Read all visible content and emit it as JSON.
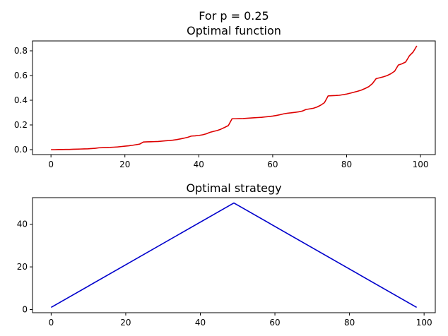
{
  "figure": {
    "suptitle": "For p = 0.25"
  },
  "chart_data": [
    {
      "type": "line",
      "title": "Optimal function",
      "xlabel": "",
      "ylabel": "",
      "xlim": [
        -5,
        104
      ],
      "ylim": [
        -0.04,
        0.88
      ],
      "xticks": [
        0,
        20,
        40,
        60,
        80,
        100
      ],
      "xtick_labels": [
        "0",
        "20",
        "40",
        "60",
        "80",
        "100"
      ],
      "yticks": [
        0.0,
        0.2,
        0.4,
        0.6,
        0.8
      ],
      "ytick_labels": [
        "0.0",
        "0.2",
        "0.4",
        "0.6",
        "0.8"
      ],
      "grid": false,
      "series": [
        {
          "color": "#dd0000",
          "x": [
            0,
            1,
            2,
            3,
            4,
            5,
            6,
            7,
            8,
            9,
            10,
            11,
            12,
            13,
            14,
            15,
            16,
            17,
            18,
            19,
            20,
            21,
            22,
            23,
            24,
            25,
            26,
            27,
            28,
            29,
            30,
            31,
            32,
            33,
            34,
            35,
            36,
            37,
            38,
            39,
            40,
            41,
            42,
            43,
            44,
            45,
            46,
            47,
            48,
            49,
            50,
            51,
            52,
            53,
            54,
            55,
            56,
            57,
            58,
            59,
            60,
            61,
            62,
            63,
            64,
            65,
            66,
            67,
            68,
            69,
            70,
            71,
            72,
            73,
            74,
            75,
            76,
            77,
            78,
            79,
            80,
            81,
            82,
            83,
            84,
            85,
            86,
            87,
            88,
            89,
            90,
            91,
            92,
            93,
            94,
            95,
            96,
            97,
            98,
            99
          ],
          "y": [
            0.0,
            0.0,
            0.001,
            0.001,
            0.002,
            0.002,
            0.003,
            0.004,
            0.005,
            0.006,
            0.007,
            0.009,
            0.011,
            0.015,
            0.016,
            0.017,
            0.018,
            0.02,
            0.022,
            0.025,
            0.028,
            0.031,
            0.035,
            0.04,
            0.045,
            0.062,
            0.063,
            0.064,
            0.065,
            0.066,
            0.069,
            0.072,
            0.074,
            0.077,
            0.081,
            0.087,
            0.093,
            0.1,
            0.11,
            0.112,
            0.115,
            0.12,
            0.128,
            0.14,
            0.148,
            0.155,
            0.166,
            0.18,
            0.195,
            0.25,
            0.25,
            0.251,
            0.252,
            0.254,
            0.256,
            0.258,
            0.26,
            0.262,
            0.265,
            0.268,
            0.272,
            0.277,
            0.283,
            0.29,
            0.295,
            0.298,
            0.302,
            0.306,
            0.312,
            0.325,
            0.33,
            0.335,
            0.345,
            0.36,
            0.38,
            0.435,
            0.437,
            0.438,
            0.44,
            0.445,
            0.45,
            0.457,
            0.465,
            0.473,
            0.482,
            0.495,
            0.51,
            0.535,
            0.575,
            0.582,
            0.59,
            0.6,
            0.615,
            0.635,
            0.685,
            0.695,
            0.71,
            0.76,
            0.79,
            0.84
          ]
        }
      ]
    },
    {
      "type": "line",
      "title": "Optimal strategy",
      "xlabel": "",
      "ylabel": "",
      "xlim": [
        -5,
        103
      ],
      "ylim": [
        -1.5,
        52.5
      ],
      "xticks": [
        0,
        20,
        40,
        60,
        80,
        100
      ],
      "xtick_labels": [
        "0",
        "20",
        "40",
        "60",
        "80",
        "100"
      ],
      "yticks": [
        0,
        20,
        40
      ],
      "ytick_labels": [
        "0",
        "20",
        "40"
      ],
      "grid": false,
      "series": [
        {
          "color": "#0000cc",
          "x": [
            0,
            49,
            98
          ],
          "y": [
            1,
            50,
            1
          ]
        }
      ]
    }
  ]
}
